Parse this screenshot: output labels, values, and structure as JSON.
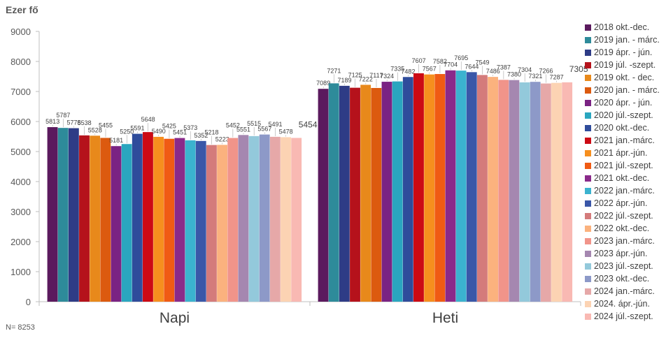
{
  "unit_label": "Ezer fő",
  "note": "N= 8253",
  "chart_data": {
    "type": "bar",
    "ylim": [
      0,
      9000
    ],
    "yticks": [
      0,
      1000,
      2000,
      3000,
      4000,
      5000,
      6000,
      7000,
      8000,
      9000
    ],
    "categories": [
      "Napi",
      "Heti"
    ],
    "legend_position": "right",
    "grid": false,
    "series": [
      {
        "name": "2018 okt.-dec.",
        "color": "#5b1a5e",
        "values": [
          5813,
          7089
        ]
      },
      {
        "name": "2019 jan. - márc.",
        "color": "#2e8b9a",
        "values": [
          5787,
          7271
        ]
      },
      {
        "name": "2019 ápr. - jún.",
        "color": "#2e3c86",
        "values": [
          5778,
          7189
        ]
      },
      {
        "name": "2019 júl. -szept.",
        "color": "#b5121b",
        "values": [
          5538,
          7125
        ]
      },
      {
        "name": "2019 okt. - dec.",
        "color": "#e8891b",
        "values": [
          5528,
          7222
        ]
      },
      {
        "name": "2020 jan. - márc.",
        "color": "#dc5a0f",
        "values": [
          5455,
          7117
        ]
      },
      {
        "name": "2020 ápr. - jún.",
        "color": "#7a2383",
        "values": [
          5181,
          7324
        ]
      },
      {
        "name": "2020 júl.-szept.",
        "color": "#2aa6bf",
        "values": [
          5250,
          7335
        ]
      },
      {
        "name": "2020 okt.-dec.",
        "color": "#2f4c9b",
        "values": [
          5591,
          7482
        ]
      },
      {
        "name": "2021 jan.-márc.",
        "color": "#cc0a14",
        "values": [
          5648,
          7607
        ]
      },
      {
        "name": "2021 ápr.-jún.",
        "color": "#f68f1e",
        "values": [
          5490,
          7567
        ]
      },
      {
        "name": "2021 júl.-szept.",
        "color": "#f05b14",
        "values": [
          5425,
          7582
        ]
      },
      {
        "name": "2021 okt.-dec.",
        "color": "#8a2a8a",
        "values": [
          5451,
          7704
        ]
      },
      {
        "name": "2022 jan.-márc.",
        "color": "#3bb3cf",
        "values": [
          5373,
          7695
        ]
      },
      {
        "name": "2022 ápr.-jún.",
        "color": "#3a57a8",
        "values": [
          5352,
          7644
        ]
      },
      {
        "name": "2022 júl.-szept.",
        "color": "#d47b7b",
        "values": [
          5218,
          7549
        ]
      },
      {
        "name": "2022 okt.-dec.",
        "color": "#fbb27e",
        "values": [
          5223,
          7486
        ]
      },
      {
        "name": "2023 jan.-márc.",
        "color": "#f1948a",
        "values": [
          5452,
          7387
        ]
      },
      {
        "name": "2023 ápr.-jún.",
        "color": "#a587b0",
        "values": [
          5551,
          7380
        ]
      },
      {
        "name": "2023 júl.-szept.",
        "color": "#93c9db",
        "values": [
          5515,
          7304
        ]
      },
      {
        "name": "2023 okt.-dec.",
        "color": "#8d99c8",
        "values": [
          5567,
          7321
        ]
      },
      {
        "name": "2024 jan.-márc.",
        "color": "#e6a8a8",
        "values": [
          5491,
          7266
        ]
      },
      {
        "name": "2024. ápr.-jún.",
        "color": "#fcd3b3",
        "values": [
          5478,
          7287
        ]
      },
      {
        "name": "2024 júl.-szept.",
        "color": "#f9b9b3",
        "values": [
          5454,
          7305
        ]
      }
    ]
  }
}
